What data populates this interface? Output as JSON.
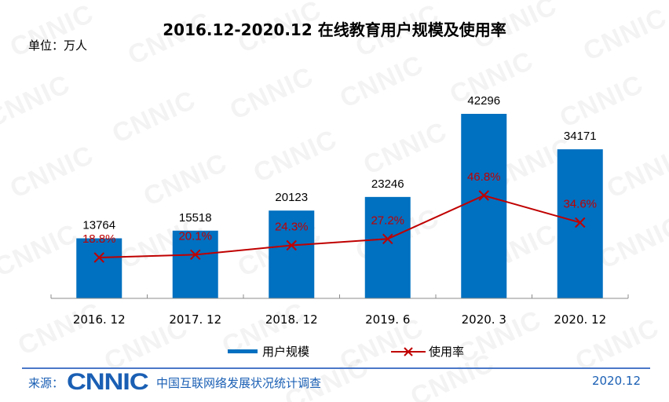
{
  "title": "2016.12-2020.12 在线教育用户规模及使用率",
  "unit_label": "单位：万人",
  "legend": {
    "bar_label": "用户规模",
    "line_label": "使用率"
  },
  "footer": {
    "source_label": "来源：",
    "logo_text": "CNNIC",
    "source_name": "中国互联网络发展状况统计调查",
    "date": "2020.12"
  },
  "colors": {
    "bar": "#0070C0",
    "line": "#C00000",
    "footer": "#1a5fb4"
  },
  "chart_data": {
    "type": "bar",
    "title": "2016.12-2020.12 在线教育用户规模及使用率",
    "xlabel": "",
    "ylabel": "单位：万人",
    "categories": [
      "2016. 12",
      "2017. 12",
      "2018. 12",
      "2019. 6",
      "2020. 3",
      "2020. 12"
    ],
    "series": [
      {
        "name": "用户规模",
        "type": "bar",
        "values": [
          13764,
          15518,
          20123,
          23246,
          42296,
          34171
        ],
        "labels": [
          "13764",
          "15518",
          "20123",
          "23246",
          "42296",
          "34171"
        ]
      },
      {
        "name": "使用率",
        "type": "line",
        "values": [
          18.8,
          20.1,
          24.3,
          27.2,
          46.8,
          34.6
        ],
        "labels": [
          "18.8%",
          "20.1%",
          "24.3%",
          "27.2%",
          "46.8%",
          "34.6%"
        ]
      }
    ],
    "legend_position": "bottom",
    "grid": false
  }
}
